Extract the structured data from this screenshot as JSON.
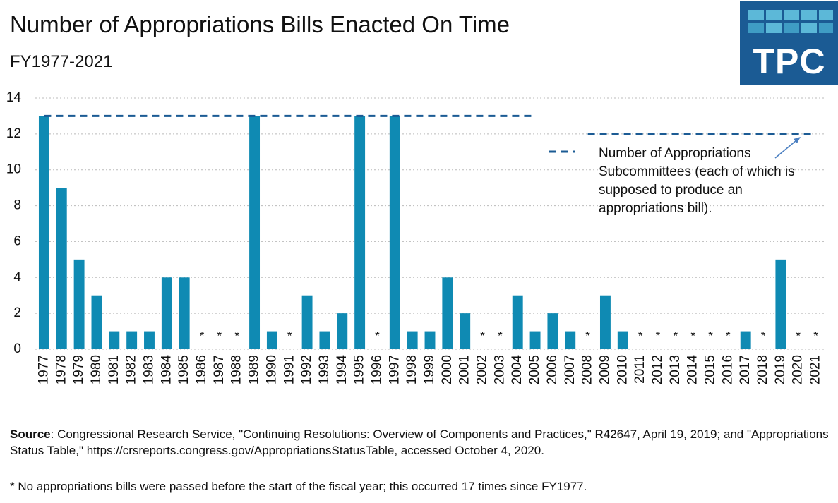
{
  "chart_data": {
    "type": "bar",
    "title": "Number of Appropriations Bills Enacted On Time",
    "subtitle": "FY1977-2021",
    "categories": [
      "1977",
      "1978",
      "1979",
      "1980",
      "1981",
      "1982",
      "1983",
      "1984",
      "1985",
      "1986",
      "1987",
      "1988",
      "1989",
      "1990",
      "1991",
      "1992",
      "1993",
      "1994",
      "1995",
      "1996",
      "1997",
      "1998",
      "1999",
      "2000",
      "2001",
      "2002",
      "2003",
      "2004",
      "2005",
      "2006",
      "2007",
      "2008",
      "2009",
      "2010",
      "2011",
      "2012",
      "2013",
      "2014",
      "2015",
      "2016",
      "2017",
      "2018",
      "2019",
      "2020",
      "2021"
    ],
    "values": [
      13,
      9,
      5,
      3,
      1,
      1,
      1,
      4,
      4,
      0,
      0,
      0,
      13,
      1,
      0,
      3,
      1,
      2,
      13,
      0,
      13,
      1,
      1,
      4,
      2,
      0,
      0,
      3,
      1,
      2,
      1,
      0,
      3,
      1,
      0,
      0,
      0,
      0,
      0,
      0,
      1,
      0,
      5,
      0,
      0
    ],
    "value_labels": [
      null,
      null,
      null,
      null,
      null,
      null,
      null,
      null,
      null,
      "*",
      "*",
      "*",
      null,
      null,
      "*",
      null,
      null,
      null,
      null,
      "*",
      null,
      null,
      null,
      null,
      null,
      "*",
      "*",
      null,
      null,
      null,
      null,
      "*",
      null,
      null,
      "*",
      "*",
      "*",
      "*",
      "*",
      "*",
      null,
      "*",
      null,
      "*",
      "*"
    ],
    "color": "#0f8ab3",
    "reference_line": {
      "name": "Number of Appropriations Subcommittees (each of which is supposed to produce an appropriations bill).",
      "color": "#1b5b94",
      "values": [
        13,
        13,
        13,
        13,
        13,
        13,
        13,
        13,
        13,
        13,
        13,
        13,
        13,
        13,
        13,
        13,
        13,
        13,
        13,
        13,
        13,
        13,
        13,
        13,
        13,
        13,
        13,
        13,
        13,
        null,
        null,
        12,
        12,
        12,
        12,
        12,
        12,
        12,
        12,
        12,
        12,
        12,
        12,
        12,
        12
      ]
    },
    "ylim": [
      0,
      14
    ],
    "yticks": [
      0,
      2,
      4,
      6,
      8,
      10,
      12,
      14
    ],
    "grid": true,
    "source_label": "Source",
    "source_text": ": Congressional Research Service, \"Continuing Resolutions: Overview of Components and Practices,\"  R42647, April 19, 2019; and \"Appropriations Status Table,\" https://crsreports.congress.gov/AppropriationsStatusTable, accessed October 4, 2020.",
    "footnote": "* No appropriations bills were passed before the start of the fiscal year; this occurred 17 times since FY1977.",
    "logo": "TPC"
  }
}
